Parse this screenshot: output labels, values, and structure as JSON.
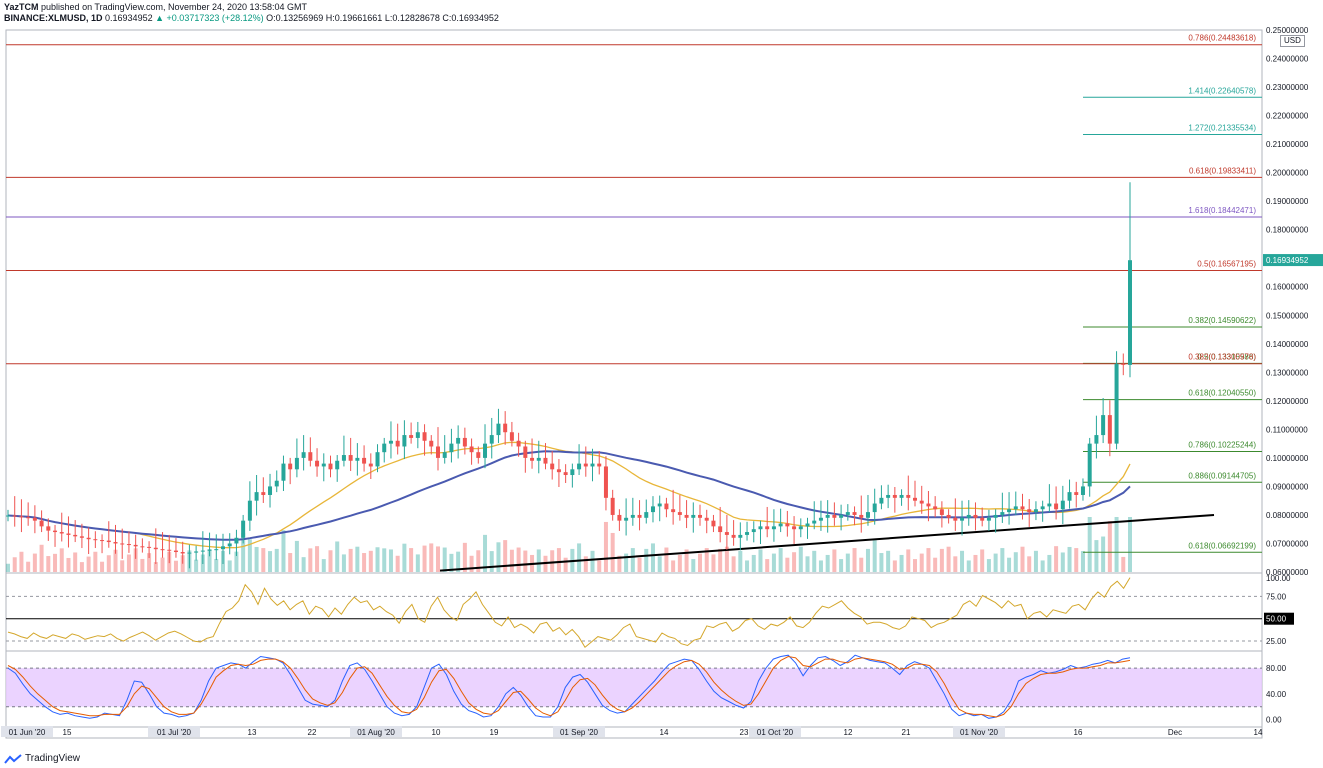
{
  "header": {
    "publisher": "YazTCM",
    "published_line": "published on TradingView.com, November 24, 2020 13:58:04 GMT",
    "symbol": "BINANCE:XLMUSD, 1D",
    "last": "0.16934952",
    "change": "+0.03717323 (+28.12%)",
    "open": "O:0.13256969",
    "high": "H:0.19661661",
    "low": "L:0.12828678",
    "close": "C:0.16934952"
  },
  "footer": {
    "brand": "TradingView"
  },
  "unit_badge": "USD",
  "colors": {
    "up": "#26a69a",
    "down": "#ef5350",
    "ma_slow": "#4a5ab0",
    "ma_fast": "#e8b639",
    "fib_red": "#c0392b",
    "fib_teal": "#26a69a",
    "fib_purple": "#7e57c2",
    "fib_green": "#3c8a2e",
    "rsi": "#d4a72c",
    "stoch_k": "#2962ff",
    "stoch_d": "#e65c00",
    "stoch_band": "#e6c8ff"
  },
  "chart_data": [
    {
      "type": "candlestick",
      "symbol": "BINANCE:XLMUSD",
      "interval": "1D",
      "ylim": [
        0.06,
        0.25
      ],
      "y_ticks": [
        "0.06000000",
        "0.07000000",
        "0.08000000",
        "0.09000000",
        "0.10000000",
        "0.11000000",
        "0.12000000",
        "0.13000000",
        "0.14000000",
        "0.15000000",
        "0.16000000",
        "0.17000000",
        "0.18000000",
        "0.19000000",
        "0.20000000",
        "0.21000000",
        "0.22000000",
        "0.23000000",
        "0.24000000",
        "0.25000000"
      ],
      "x_ticks": [
        "01 Jun '20",
        "15",
        "01 Jul '20",
        "13",
        "22",
        "01 Aug '20",
        "10",
        "19",
        "01 Sep '20",
        "14",
        "23",
        "01 Oct '20",
        "12",
        "21",
        "01 Nov '20",
        "16",
        "Dec",
        "14"
      ],
      "last_price_label": "0.16934952",
      "closes": [
        0.0798,
        0.0795,
        0.0792,
        0.079,
        0.078,
        0.076,
        0.0745,
        0.074,
        0.0735,
        0.073,
        0.0725,
        0.072,
        0.0715,
        0.0712,
        0.071,
        0.0705,
        0.07,
        0.0698,
        0.0695,
        0.069,
        0.0688,
        0.0685,
        0.068,
        0.0678,
        0.0675,
        0.067,
        0.0665,
        0.0668,
        0.0672,
        0.0675,
        0.0678,
        0.068,
        0.069,
        0.07,
        0.072,
        0.078,
        0.085,
        0.088,
        0.087,
        0.09,
        0.092,
        0.098,
        0.096,
        0.1,
        0.102,
        0.099,
        0.097,
        0.098,
        0.096,
        0.099,
        0.101,
        0.099,
        0.1,
        0.098,
        0.097,
        0.102,
        0.105,
        0.106,
        0.104,
        0.108,
        0.107,
        0.109,
        0.106,
        0.104,
        0.1,
        0.102,
        0.105,
        0.107,
        0.104,
        0.102,
        0.1,
        0.105,
        0.108,
        0.112,
        0.109,
        0.106,
        0.104,
        0.1,
        0.099,
        0.1,
        0.098,
        0.096,
        0.095,
        0.094,
        0.096,
        0.098,
        0.097,
        0.098,
        0.097,
        0.086,
        0.08,
        0.078,
        0.079,
        0.08,
        0.079,
        0.081,
        0.083,
        0.084,
        0.082,
        0.081,
        0.08,
        0.079,
        0.08,
        0.079,
        0.078,
        0.076,
        0.074,
        0.073,
        0.072,
        0.073,
        0.074,
        0.075,
        0.076,
        0.075,
        0.076,
        0.077,
        0.076,
        0.075,
        0.076,
        0.077,
        0.078,
        0.079,
        0.08,
        0.079,
        0.08,
        0.081,
        0.08,
        0.079,
        0.081,
        0.084,
        0.086,
        0.087,
        0.086,
        0.087,
        0.086,
        0.085,
        0.084,
        0.083,
        0.082,
        0.08,
        0.079,
        0.078,
        0.079,
        0.08,
        0.079,
        0.078,
        0.079,
        0.08,
        0.081,
        0.082,
        0.083,
        0.082,
        0.081,
        0.082,
        0.083,
        0.084,
        0.082,
        0.085,
        0.088,
        0.087,
        0.09,
        0.105,
        0.108,
        0.115,
        0.105,
        0.133,
        0.1326,
        0.1693
      ],
      "fib_levels": [
        {
          "label": "0.786(0.24483618)",
          "value": 0.24483618,
          "color": "fib_red",
          "full": true
        },
        {
          "label": "1.414(0.22640578)",
          "value": 0.22640578,
          "color": "fib_teal",
          "full": false
        },
        {
          "label": "1.272(0.21335534)",
          "value": 0.21335534,
          "color": "fib_teal",
          "full": false
        },
        {
          "label": "0.618(0.19833411)",
          "value": 0.19833411,
          "color": "fib_red",
          "full": true
        },
        {
          "label": "1.618(0.18442471)",
          "value": 0.18442471,
          "color": "fib_purple",
          "full": true
        },
        {
          "label": "0.5(0.16567195)",
          "value": 0.16567195,
          "color": "fib_red",
          "full": true
        },
        {
          "label": "0.382(0.14590622)",
          "value": 0.14590622,
          "color": "fib_green",
          "full": false
        },
        {
          "label": "0.5(0.13315586)",
          "value": 0.13315586,
          "color": "fib_green",
          "full": false
        },
        {
          "label": "0.382(0.13300978)",
          "value": 0.13300978,
          "color": "fib_red",
          "full": true
        },
        {
          "label": "0.618(0.12040550)",
          "value": 0.1204055,
          "color": "fib_green",
          "full": false
        },
        {
          "label": "0.786(0.10225244)",
          "value": 0.10225244,
          "color": "fib_green",
          "full": false
        },
        {
          "label": "0.886(0.09144705)",
          "value": 0.09144705,
          "color": "fib_green",
          "full": false
        },
        {
          "label": "0.618(0.06692199)",
          "value": 0.06692199,
          "color": "fib_green",
          "full": false
        }
      ],
      "trendline": {
        "from": 0.0605,
        "to": 0.08
      },
      "grid": false
    },
    {
      "type": "line",
      "name": "RSI",
      "ylim": [
        15,
        100
      ],
      "y_ticks": [
        "100.00",
        "75.00",
        "50.00",
        "25.00"
      ],
      "guides": [
        75,
        50,
        25
      ],
      "values": [
        35,
        33,
        30,
        28,
        34,
        30,
        28,
        32,
        30,
        28,
        33,
        31,
        27,
        29,
        31,
        30,
        33,
        28,
        25,
        29,
        32,
        35,
        31,
        26,
        30,
        34,
        36,
        33,
        29,
        25,
        24,
        28,
        30,
        45,
        58,
        62,
        70,
        88,
        80,
        66,
        84,
        72,
        65,
        70,
        60,
        66,
        70,
        55,
        64,
        61,
        52,
        62,
        55,
        66,
        74,
        68,
        70,
        60,
        64,
        58,
        54,
        45,
        58,
        66,
        50,
        46,
        64,
        74,
        60,
        52,
        48,
        66,
        72,
        80,
        66,
        56,
        46,
        42,
        52,
        40,
        44,
        40,
        34,
        44,
        46,
        36,
        40,
        32,
        38,
        30,
        18,
        24,
        30,
        28,
        26,
        32,
        40,
        44,
        30,
        28,
        26,
        24,
        34,
        30,
        28,
        22,
        20,
        26,
        28,
        42,
        40,
        44,
        46,
        36,
        40,
        48,
        50,
        42,
        38,
        44,
        42,
        46,
        52,
        42,
        40,
        46,
        56,
        64,
        62,
        66,
        70,
        62,
        56,
        52,
        44,
        46,
        46,
        44,
        40,
        38,
        42,
        52,
        50,
        48,
        40,
        44,
        46,
        50,
        54,
        66,
        70,
        64,
        76,
        72,
        68,
        62,
        70,
        64,
        66,
        50,
        56,
        58,
        52,
        60,
        58,
        56,
        64,
        66,
        60,
        72,
        80,
        74,
        86,
        92,
        84,
        96
      ]
    },
    {
      "type": "line",
      "name": "Stoch RSI",
      "ylim": [
        -10,
        105
      ],
      "y_ticks": [
        "80.00",
        "40.00",
        "0.00"
      ],
      "band": [
        20,
        80
      ],
      "k": [
        80,
        72,
        55,
        40,
        30,
        20,
        12,
        8,
        10,
        6,
        4,
        2,
        4,
        10,
        8,
        6,
        30,
        60,
        58,
        40,
        20,
        10,
        8,
        4,
        6,
        10,
        30,
        60,
        80,
        84,
        88,
        86,
        80,
        90,
        98,
        96,
        94,
        88,
        70,
        50,
        30,
        24,
        22,
        20,
        30,
        60,
        84,
        88,
        78,
        60,
        40,
        20,
        10,
        6,
        8,
        20,
        50,
        80,
        86,
        70,
        44,
        24,
        14,
        10,
        4,
        6,
        20,
        40,
        50,
        38,
        20,
        6,
        4,
        4,
        20,
        50,
        66,
        70,
        58,
        40,
        22,
        14,
        10,
        12,
        24,
        36,
        48,
        60,
        74,
        86,
        90,
        94,
        92,
        78,
        60,
        44,
        34,
        28,
        22,
        18,
        28,
        60,
        80,
        94,
        98,
        100,
        88,
        68,
        84,
        96,
        98,
        92,
        84,
        90,
        100,
        96,
        92,
        90,
        88,
        80,
        70,
        84,
        90,
        86,
        80,
        60,
        40,
        16,
        6,
        10,
        6,
        8,
        2,
        4,
        12,
        30,
        60,
        66,
        70,
        76,
        72,
        74,
        78,
        84,
        80,
        82,
        86,
        88,
        92,
        88,
        94,
        96
      ],
      "d": [
        84,
        78,
        66,
        52,
        40,
        30,
        20,
        14,
        12,
        10,
        8,
        6,
        6,
        8,
        8,
        8,
        20,
        40,
        52,
        48,
        34,
        20,
        12,
        8,
        8,
        10,
        24,
        44,
        66,
        76,
        84,
        86,
        84,
        86,
        92,
        94,
        94,
        90,
        80,
        64,
        46,
        32,
        26,
        22,
        26,
        42,
        64,
        80,
        82,
        72,
        54,
        36,
        22,
        12,
        10,
        16,
        34,
        58,
        76,
        78,
        64,
        44,
        26,
        16,
        10,
        8,
        14,
        28,
        42,
        44,
        32,
        18,
        10,
        6,
        12,
        30,
        50,
        62,
        64,
        54,
        38,
        24,
        16,
        12,
        18,
        28,
        40,
        52,
        64,
        76,
        84,
        90,
        92,
        86,
        74,
        58,
        46,
        36,
        28,
        22,
        24,
        40,
        60,
        80,
        92,
        98,
        96,
        84,
        82,
        88,
        94,
        94,
        90,
        88,
        94,
        96,
        94,
        92,
        90,
        86,
        78,
        80,
        86,
        86,
        84,
        74,
        56,
        34,
        16,
        10,
        8,
        8,
        6,
        4,
        8,
        20,
        40,
        56,
        64,
        70,
        72,
        72,
        74,
        78,
        80,
        80,
        82,
        84,
        88,
        88,
        90,
        92
      ]
    }
  ]
}
